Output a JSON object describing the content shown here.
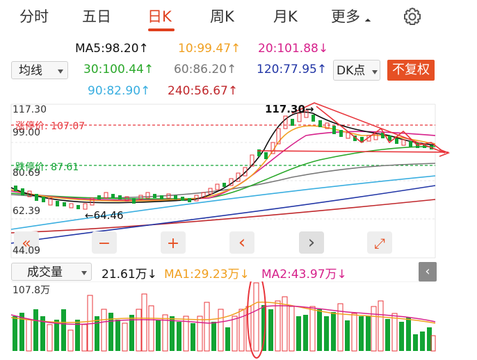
{
  "tabs": [
    {
      "label": "分时"
    },
    {
      "label": "五日"
    },
    {
      "label": "日K"
    },
    {
      "label": "周K"
    },
    {
      "label": "月K"
    },
    {
      "label": "更多"
    }
  ],
  "active_tab": "日K",
  "ma": {
    "ma5": "MA5:98.20",
    "ma10": "10:99.47",
    "ma20": "20:101.88",
    "ma30": "30:100.44",
    "ma60": "60:86.20",
    "ma120": "120:77.95",
    "ma90": "90:82.90",
    "ma240": "240:56.67",
    "up_arrow": "↑",
    "down_arrow": "↓"
  },
  "controls": {
    "indicator_select": "均线",
    "dk_select": "DK点",
    "fuquan_button": "不复权"
  },
  "price_axis": {
    "max": "117.30",
    "l2": "99.00",
    "l3": "80.69",
    "l4": "62.39",
    "min": "44.09"
  },
  "annotations": {
    "limit_up_label": "涨停价:",
    "limit_up_value": "107.07",
    "limit_down_label": "跌停价:",
    "limit_down_value": "87.61",
    "high_label": "117.30",
    "low_label": "←64.46"
  },
  "nav": {
    "prev_all": "«",
    "zoom_out": "−",
    "zoom_in": "+",
    "prev": "‹",
    "next": "›",
    "fullscreen": "⤢"
  },
  "volume": {
    "select": "成交量",
    "value": "21.61万",
    "value_arrow": "↓",
    "ma1": "MA1:29.23万",
    "ma1_arrow": "↓",
    "ma2": "MA2:43.97万",
    "ma2_arrow": "↓",
    "axis_max": "107.8万",
    "collapse_icon": "‹"
  },
  "colors": {
    "accent": "#e0401e",
    "up": "#e8343a",
    "down": "#12a434",
    "ma5": "#111111",
    "ma10": "#f0a020",
    "ma20": "#d6218b",
    "ma30": "#2aa82a",
    "ma60": "#777777",
    "ma120": "#2236a6",
    "ma90": "#39aee0",
    "ma240": "#c0282c"
  }
}
